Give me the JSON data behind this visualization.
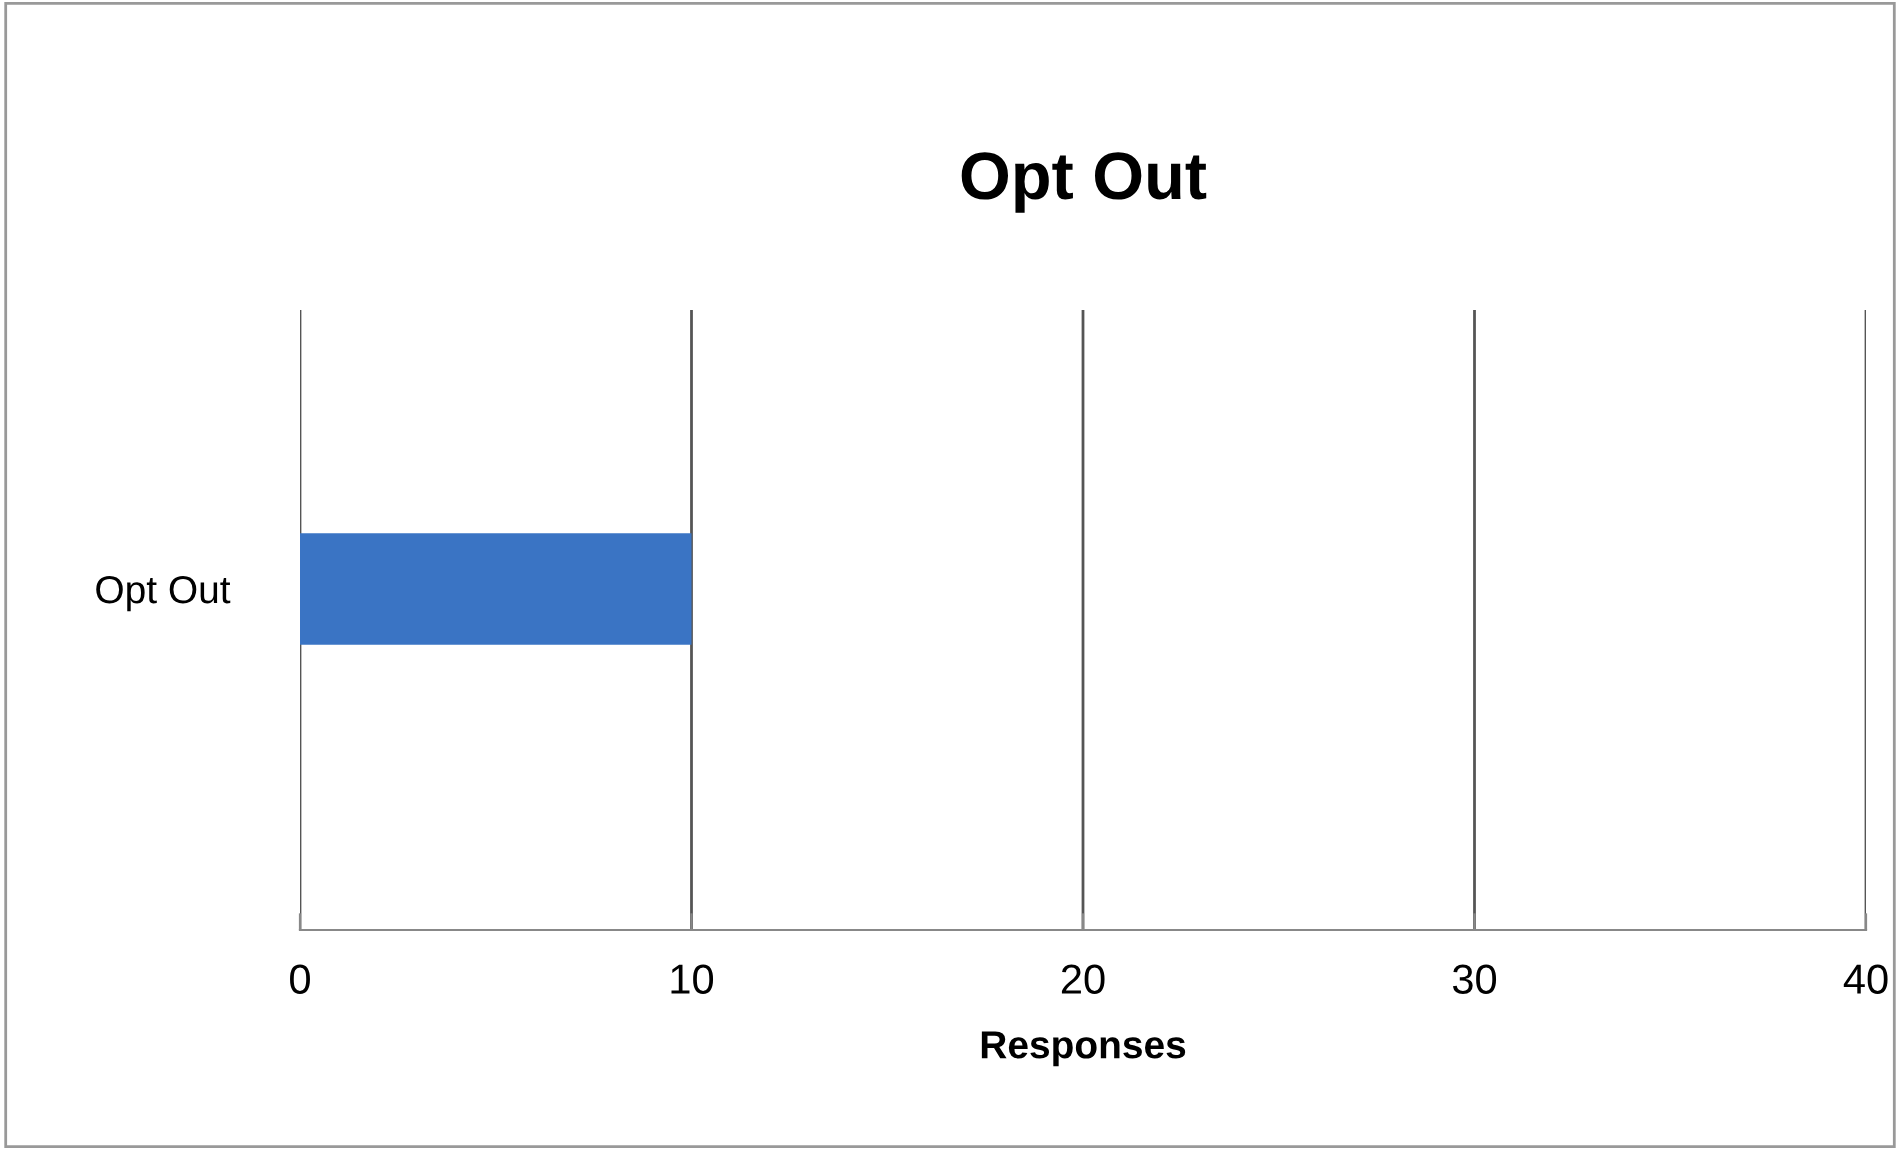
{
  "chart_data": {
    "type": "bar",
    "orientation": "horizontal",
    "title": "Opt Out",
    "xlabel": "Responses",
    "categories": [
      "Opt Out"
    ],
    "series": [
      {
        "color": "#3a74c4",
        "values": [
          10
        ]
      }
    ],
    "xlim": [
      0,
      40
    ],
    "xticks": [
      0,
      10,
      20,
      30,
      40
    ],
    "grid": "x"
  }
}
